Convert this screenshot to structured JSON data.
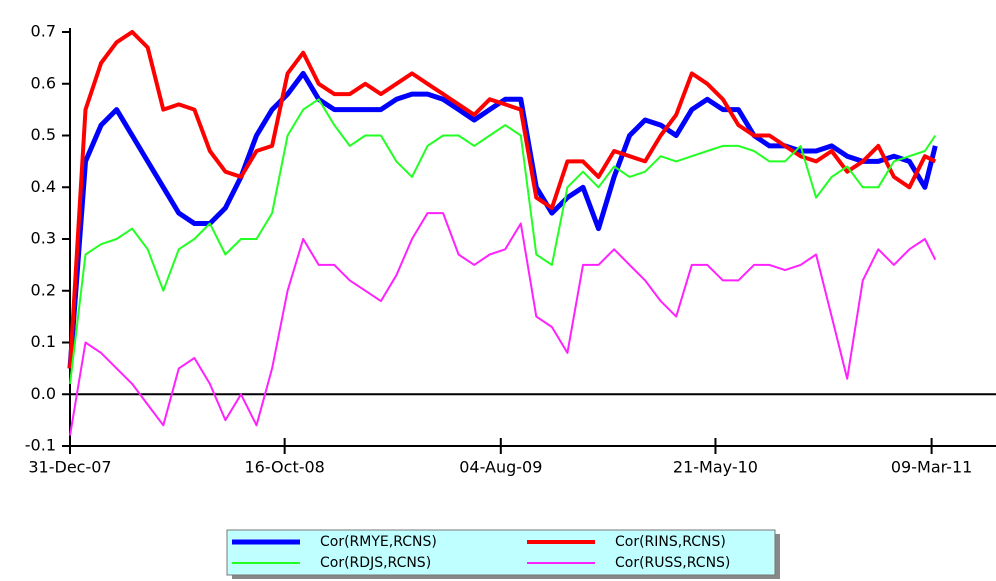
{
  "chart_data": {
    "type": "line",
    "x": [
      "31-Dec-07",
      "21-Jan-08",
      "11-Feb-08",
      "03-Mar-08",
      "24-Mar-08",
      "14-Apr-08",
      "05-May-08",
      "26-May-08",
      "16-Jun-08",
      "07-Jul-08",
      "28-Jul-08",
      "18-Aug-08",
      "08-Sep-08",
      "29-Sep-08",
      "20-Oct-08",
      "10-Nov-08",
      "01-Dec-08",
      "22-Dec-08",
      "12-Jan-09",
      "02-Feb-09",
      "23-Feb-09",
      "16-Mar-09",
      "06-Apr-09",
      "27-Apr-09",
      "18-May-09",
      "08-Jun-09",
      "29-Jun-09",
      "20-Jul-09",
      "10-Aug-09",
      "31-Aug-09",
      "21-Sep-09",
      "12-Oct-09",
      "02-Nov-09",
      "23-Nov-09",
      "14-Dec-09",
      "04-Jan-10",
      "25-Jan-10",
      "15-Feb-10",
      "08-Mar-10",
      "29-Mar-10",
      "19-Apr-10",
      "10-May-10",
      "31-May-10",
      "21-Jun-10",
      "12-Jul-10",
      "02-Aug-10",
      "23-Aug-10",
      "13-Sep-10",
      "04-Oct-10",
      "25-Oct-10",
      "15-Nov-10",
      "06-Dec-10",
      "27-Dec-10",
      "17-Jan-11",
      "07-Feb-11",
      "28-Feb-11",
      "14-Mar-11"
    ],
    "series": [
      {
        "name": "Cor(RMYE,RCNS)",
        "color": "#0000ff",
        "values": [
          0.05,
          0.45,
          0.52,
          0.55,
          0.5,
          0.45,
          0.4,
          0.35,
          0.33,
          0.33,
          0.36,
          0.42,
          0.5,
          0.55,
          0.58,
          0.62,
          0.57,
          0.55,
          0.55,
          0.55,
          0.55,
          0.57,
          0.58,
          0.58,
          0.57,
          0.55,
          0.53,
          0.55,
          0.57,
          0.57,
          0.4,
          0.35,
          0.38,
          0.4,
          0.32,
          0.42,
          0.5,
          0.53,
          0.52,
          0.5,
          0.55,
          0.57,
          0.55,
          0.55,
          0.5,
          0.48,
          0.48,
          0.47,
          0.47,
          0.48,
          0.46,
          0.45,
          0.45,
          0.46,
          0.45,
          0.4,
          0.48
        ]
      },
      {
        "name": "Cor(RINS,RCNS)",
        "color": "#ff0000",
        "values": [
          0.05,
          0.55,
          0.64,
          0.68,
          0.7,
          0.67,
          0.55,
          0.56,
          0.55,
          0.47,
          0.43,
          0.42,
          0.47,
          0.48,
          0.62,
          0.66,
          0.6,
          0.58,
          0.58,
          0.6,
          0.58,
          0.6,
          0.62,
          0.6,
          0.58,
          0.56,
          0.54,
          0.57,
          0.56,
          0.55,
          0.38,
          0.36,
          0.45,
          0.45,
          0.42,
          0.47,
          0.46,
          0.45,
          0.5,
          0.54,
          0.62,
          0.6,
          0.57,
          0.52,
          0.5,
          0.5,
          0.48,
          0.46,
          0.45,
          0.47,
          0.43,
          0.45,
          0.48,
          0.42,
          0.4,
          0.46,
          0.45
        ]
      },
      {
        "name": "Cor(RDJS,RCNS)",
        "color": "#22ff22",
        "values": [
          0.02,
          0.27,
          0.29,
          0.3,
          0.32,
          0.28,
          0.2,
          0.28,
          0.3,
          0.33,
          0.27,
          0.3,
          0.3,
          0.35,
          0.5,
          0.55,
          0.57,
          0.52,
          0.48,
          0.5,
          0.5,
          0.45,
          0.42,
          0.48,
          0.5,
          0.5,
          0.48,
          0.5,
          0.52,
          0.5,
          0.27,
          0.25,
          0.4,
          0.43,
          0.4,
          0.44,
          0.42,
          0.43,
          0.46,
          0.45,
          0.46,
          0.47,
          0.48,
          0.48,
          0.47,
          0.45,
          0.45,
          0.48,
          0.38,
          0.42,
          0.44,
          0.4,
          0.4,
          0.45,
          0.46,
          0.47,
          0.5
        ]
      },
      {
        "name": "Cor(RUSS,RCNS)",
        "color": "#ff22ff",
        "values": [
          -0.08,
          0.1,
          0.08,
          0.05,
          0.02,
          -0.02,
          -0.06,
          0.05,
          0.07,
          0.02,
          -0.05,
          0,
          -0.06,
          0.05,
          0.2,
          0.3,
          0.25,
          0.25,
          0.22,
          0.2,
          0.18,
          0.23,
          0.3,
          0.35,
          0.35,
          0.27,
          0.25,
          0.27,
          0.28,
          0.33,
          0.15,
          0.13,
          0.08,
          0.25,
          0.25,
          0.28,
          0.25,
          0.22,
          0.18,
          0.15,
          0.25,
          0.25,
          0.22,
          0.22,
          0.25,
          0.25,
          0.24,
          0.25,
          0.27,
          0.15,
          0.03,
          0.22,
          0.28,
          0.25,
          0.28,
          0.3,
          0.26
        ]
      }
    ],
    "xlim": [
      "31-Dec-07",
      "04-Jun-11"
    ],
    "xticks": [
      "31-Dec-07",
      "16-Oct-08",
      "04-Aug-09",
      "21-May-10",
      "09-Mar-11"
    ],
    "ylim": [
      -0.1,
      0.7
    ],
    "yticks": [
      -0.1,
      {
        "value": 0,
        "label": "0.0"
      },
      0.1,
      0.2,
      0.3,
      0.4,
      0.5,
      0.6,
      0.7
    ],
    "legend": "bottom"
  }
}
